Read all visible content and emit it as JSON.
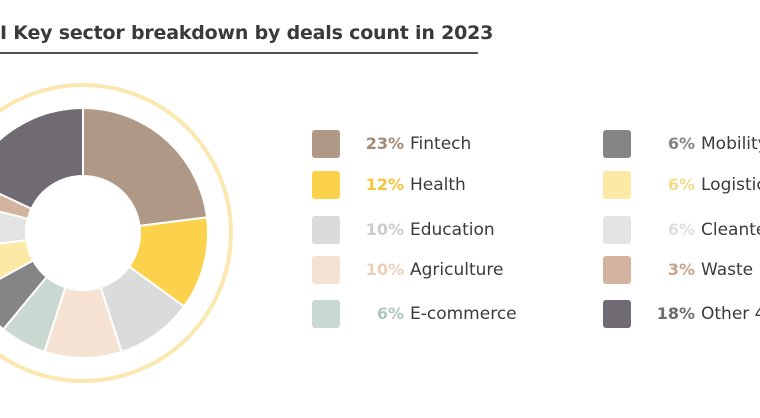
{
  "chart_data": {
    "type": "pie",
    "title": "I Key sector breakdown by deals count in 2023",
    "legend_position": "right",
    "slices": [
      {
        "label": "Fintech",
        "value": 23,
        "value_text": "23%",
        "color": "#b09886",
        "text_color": "#a08a78"
      },
      {
        "label": "Health",
        "value": 12,
        "value_text": "12%",
        "color": "#fcd24d",
        "text_color": "#f3c43c"
      },
      {
        "label": "Education",
        "value": 10,
        "value_text": "10%",
        "color": "#dbdbdb",
        "text_color": "#cbcbcb"
      },
      {
        "label": "Agriculture",
        "value": 10,
        "value_text": "10%",
        "color": "#f5e2d3",
        "text_color": "#ebcfb8"
      },
      {
        "label": "E-commerce",
        "value": 6,
        "value_text": "6%",
        "color": "#c9d8d1",
        "text_color": "#b3c6bd"
      },
      {
        "label": "Mobility",
        "value": 6,
        "value_text": "6%",
        "color": "#858585",
        "text_color": "#858585"
      },
      {
        "label": "Logistic",
        "value": 6,
        "value_text": "6%",
        "color": "#fde9a6",
        "text_color": "#f5dc8a"
      },
      {
        "label": "Cleante",
        "value": 6,
        "value_text": "6%",
        "color": "#e4e4e4",
        "text_color": "#dedede"
      },
      {
        "label": "Waste M",
        "value": 3,
        "value_text": "3%",
        "color": "#d3b59f",
        "text_color": "#c7a48a"
      },
      {
        "label": "Other 4",
        "value": 18,
        "value_text": "18%",
        "color": "#706a72",
        "text_color": "#706a72"
      }
    ],
    "ring_color": "#fbe8b0"
  }
}
